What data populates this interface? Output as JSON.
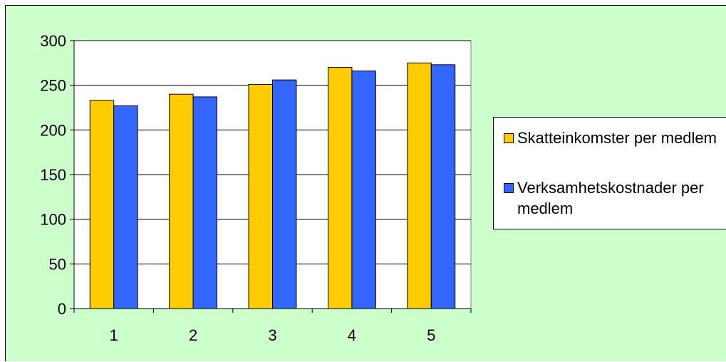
{
  "chart_data": {
    "type": "bar",
    "categories": [
      "1",
      "2",
      "3",
      "4",
      "5"
    ],
    "series": [
      {
        "name": "Skatteinkomster per medlem",
        "color": "#ffcc00",
        "values": [
          233,
          240,
          251,
          270,
          275
        ]
      },
      {
        "name": "Verksamhetskostnader per medlem",
        "color": "#3366ff",
        "values": [
          227,
          237,
          256,
          266,
          273
        ]
      }
    ],
    "yticks": [
      "0",
      "50",
      "100",
      "150",
      "200",
      "250",
      "300"
    ],
    "ylim": [
      0,
      300
    ],
    "grid": true,
    "legend_position": "right",
    "plot_background": "#ffffff",
    "chart_background": "#ccffcc"
  }
}
